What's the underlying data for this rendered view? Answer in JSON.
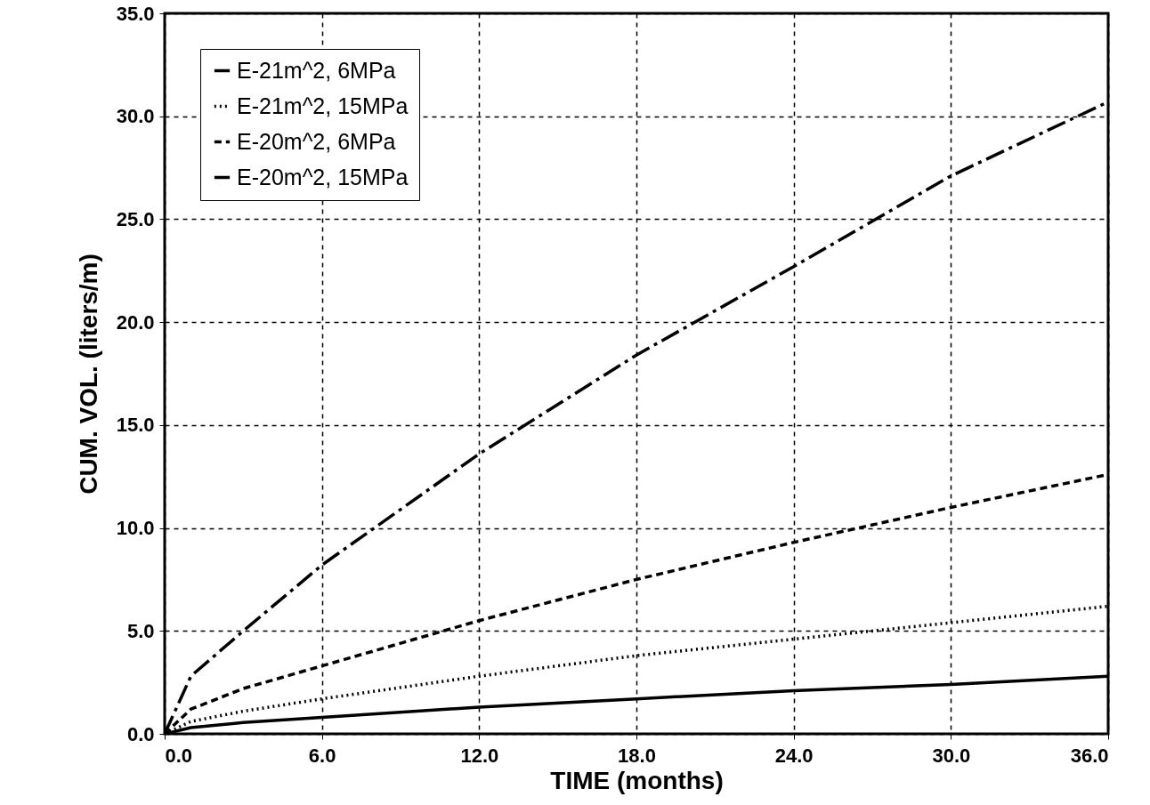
{
  "chart_data": {
    "type": "line",
    "xlabel": "TIME (months)",
    "ylabel": "CUM. VOL. (liters/m)",
    "x": [
      0,
      1,
      3,
      6,
      12,
      18,
      24,
      30,
      36
    ],
    "series": [
      {
        "name": "E-21m^2, 6MPa",
        "color": "#000000",
        "line_style": "solid",
        "values": [
          0,
          0.3,
          0.55,
          0.8,
          1.3,
          1.7,
          2.1,
          2.4,
          2.8
        ]
      },
      {
        "name": "E-21m^2, 15MPa",
        "color": "#000000",
        "line_style": "dotted",
        "values": [
          0,
          0.6,
          1.1,
          1.7,
          2.8,
          3.8,
          4.6,
          5.4,
          6.2
        ]
      },
      {
        "name": "E-20m^2, 6MPa",
        "color": "#000000",
        "line_style": "dashed",
        "values": [
          0,
          1.2,
          2.2,
          3.3,
          5.5,
          7.5,
          9.3,
          11.0,
          12.6
        ]
      },
      {
        "name": "E-20m^2, 15MPa",
        "color": "#000000",
        "line_style": "dashdot",
        "values": [
          0,
          2.8,
          5.0,
          8.2,
          13.6,
          18.4,
          22.7,
          27.1,
          30.7
        ]
      }
    ],
    "xlim": [
      0,
      36
    ],
    "xticks": [
      {
        "value": 0,
        "label": "0.0"
      },
      {
        "value": 6,
        "label": "6.0"
      },
      {
        "value": 12,
        "label": "12.0"
      },
      {
        "value": 18,
        "label": "18.0"
      },
      {
        "value": 24,
        "label": "24.0"
      },
      {
        "value": 30,
        "label": "30.0"
      },
      {
        "value": 36,
        "label": "36.0"
      }
    ],
    "ylim": [
      0,
      35
    ],
    "yticks": [
      {
        "value": 0,
        "label": "0.0"
      },
      {
        "value": 5,
        "label": "5.0"
      },
      {
        "value": 10,
        "label": "10.0"
      },
      {
        "value": 15,
        "label": "15.0"
      },
      {
        "value": 20,
        "label": "20.0"
      },
      {
        "value": 25,
        "label": "25.0"
      },
      {
        "value": 30,
        "label": "30.0"
      },
      {
        "value": 35,
        "label": "35.0"
      }
    ],
    "grid": true,
    "legend": "top left",
    "marker": "none"
  }
}
